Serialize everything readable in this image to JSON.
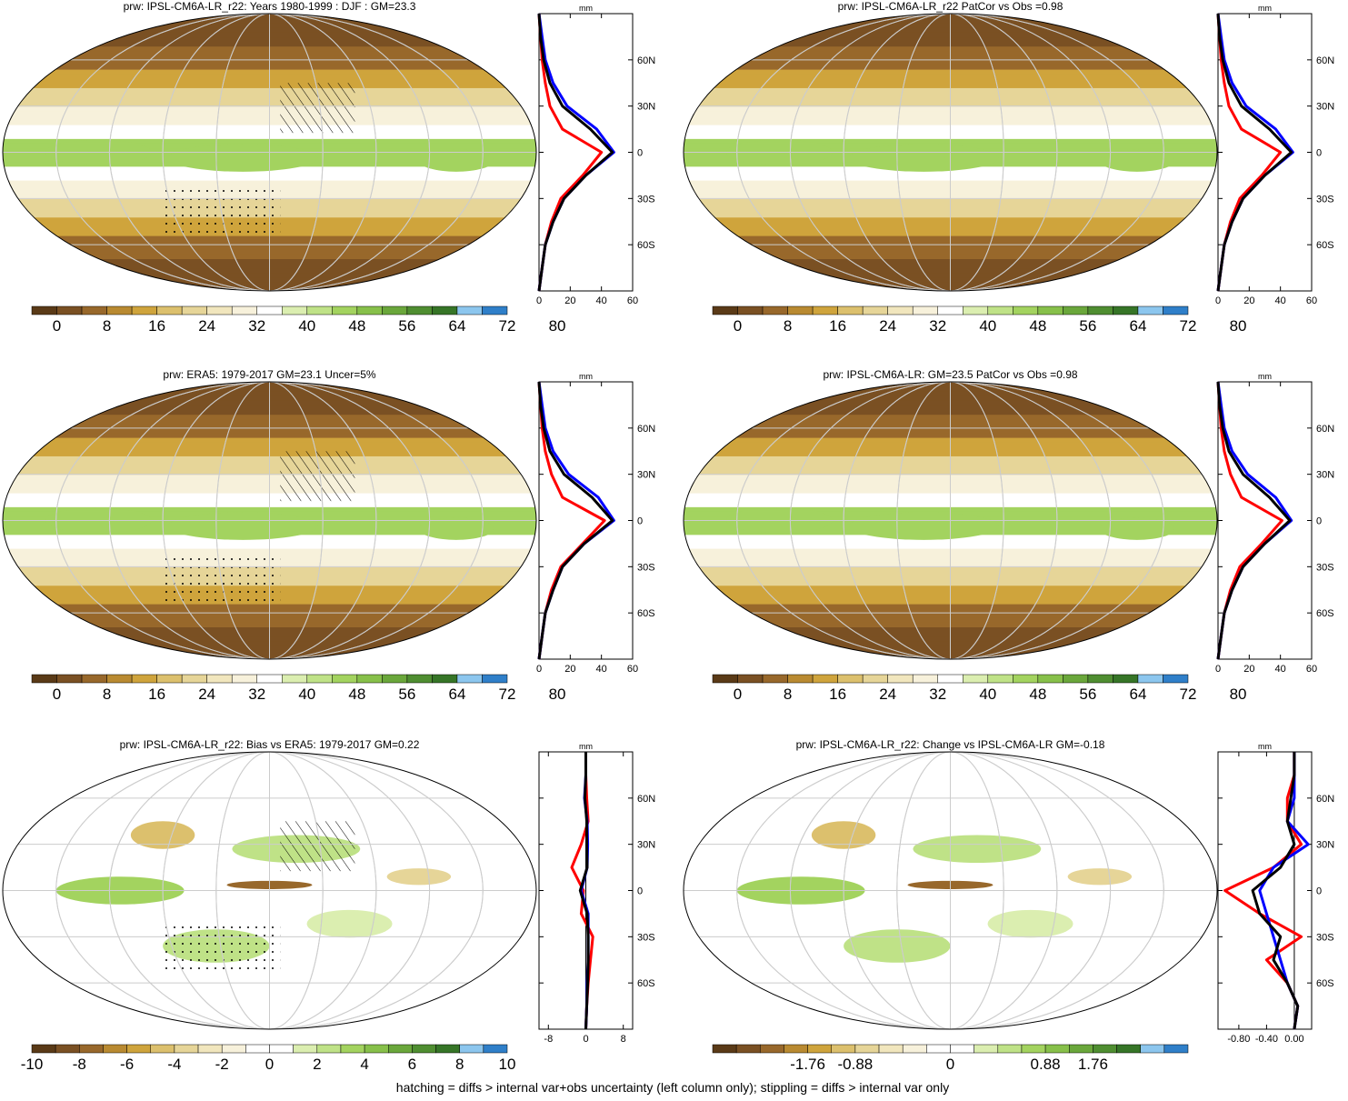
{
  "footer": "hatching = diffs > internal var+obs uncertainty (left column only); stippling = diffs > internal var only",
  "palette": {
    "abs": [
      "#5a3a17",
      "#7a5023",
      "#98682b",
      "#b98a31",
      "#cfa43c",
      "#dcc06d",
      "#e6d598",
      "#f1e6bd",
      "#f7f1db",
      "#ffffff",
      "#dbeeb0",
      "#bfe287",
      "#a3d35f",
      "#87c04a",
      "#6aa73b",
      "#4f8e31",
      "#367527",
      "#8cc6ee",
      "#2f7fc9"
    ],
    "diff": [
      "#5a3a17",
      "#7a5023",
      "#98682b",
      "#b98a31",
      "#cfa43c",
      "#dcc06d",
      "#e6d598",
      "#f1e6bd",
      "#f7f1db",
      "#ffffff",
      "#ffffff",
      "#dbeeb0",
      "#bfe287",
      "#a3d35f",
      "#87c04a",
      "#6aa73b",
      "#4f8e31",
      "#367527",
      "#8cc6ee",
      "#2f7fc9"
    ]
  },
  "line_colors": {
    "series1": "#ff0000",
    "series2": "#0000ff",
    "series3": "#000000"
  },
  "chart_data": [
    {
      "type": "heatmap",
      "title": "prw: IPSL-CM6A-LR_r22: Years 1980-1999 : DJF : GM=23.3",
      "colorbar": {
        "kind": "abs",
        "tick_labels": [
          "0",
          "8",
          "16",
          "24",
          "32",
          "40",
          "48",
          "56",
          "64",
          "72",
          "80"
        ]
      },
      "hatching": true,
      "profile": {
        "x_ticks": [
          "0",
          "20",
          "40",
          "60"
        ],
        "x_range": [
          0,
          60
        ],
        "y_ticks": [
          "60N",
          "30N",
          "0",
          "30S",
          "60S"
        ],
        "y_range": [
          -90,
          90
        ],
        "unit": "mm",
        "lat": [
          -90,
          -75,
          -60,
          -45,
          -30,
          -15,
          0,
          15,
          30,
          45,
          60,
          75,
          90
        ],
        "series1": [
          0,
          2,
          4,
          8,
          14,
          28,
          40,
          15,
          7,
          4,
          2,
          1,
          0
        ],
        "series2": [
          0,
          2,
          4,
          9,
          16,
          30,
          48,
          37,
          18,
          9,
          4,
          2,
          0
        ],
        "series3": [
          0,
          2,
          4,
          9,
          16,
          30,
          47,
          33,
          15,
          7,
          3,
          1,
          0
        ]
      }
    },
    {
      "type": "heatmap",
      "title": "prw: IPSL-CM6A-LR_r22 PatCor vs Obs =0.98",
      "colorbar": {
        "kind": "abs",
        "tick_labels": [
          "0",
          "8",
          "16",
          "24",
          "32",
          "40",
          "48",
          "56",
          "64",
          "72",
          "80"
        ]
      },
      "hatching": false,
      "profile": {
        "x_ticks": [
          "0",
          "20",
          "40",
          "60"
        ],
        "x_range": [
          0,
          60
        ],
        "y_ticks": [
          "60N",
          "30N",
          "0",
          "30S",
          "60S"
        ],
        "y_range": [
          -90,
          90
        ],
        "unit": "mm",
        "lat": [
          -90,
          -75,
          -60,
          -45,
          -30,
          -15,
          0,
          15,
          30,
          45,
          60,
          75,
          90
        ],
        "series1": [
          0,
          2,
          4,
          8,
          14,
          28,
          40,
          15,
          7,
          4,
          2,
          1,
          0
        ],
        "series2": [
          0,
          2,
          4,
          9,
          16,
          30,
          48,
          37,
          18,
          9,
          4,
          2,
          0
        ],
        "series3": [
          0,
          2,
          4,
          9,
          16,
          30,
          47,
          33,
          15,
          7,
          3,
          1,
          0
        ]
      }
    },
    {
      "type": "heatmap",
      "title": "prw: ERA5: 1979-2017 GM=23.1 Uncer=5%",
      "colorbar": {
        "kind": "abs",
        "tick_labels": [
          "0",
          "8",
          "16",
          "24",
          "32",
          "40",
          "48",
          "56",
          "64",
          "72",
          "80"
        ]
      },
      "hatching": true,
      "profile": {
        "x_ticks": [
          "0",
          "20",
          "40",
          "60"
        ],
        "x_range": [
          0,
          60
        ],
        "y_ticks": [
          "60N",
          "30N",
          "0",
          "30S",
          "60S"
        ],
        "y_range": [
          -90,
          90
        ],
        "unit": "mm",
        "lat": [
          -90,
          -75,
          -60,
          -45,
          -30,
          -15,
          0,
          15,
          30,
          45,
          60,
          75,
          90
        ],
        "series1": [
          0,
          2,
          4,
          8,
          14,
          28,
          42,
          15,
          8,
          4,
          2,
          1,
          0
        ],
        "series2": [
          0,
          2,
          4,
          9,
          15,
          29,
          48,
          38,
          19,
          9,
          4,
          2,
          0
        ],
        "series3": [
          0,
          2,
          4,
          9,
          15,
          29,
          47,
          34,
          16,
          7,
          3,
          1,
          0
        ]
      }
    },
    {
      "type": "heatmap",
      "title": "prw: IPSL-CM6A-LR: GM=23.5 PatCor vs Obs =0.98",
      "colorbar": {
        "kind": "abs",
        "tick_labels": [
          "0",
          "8",
          "16",
          "24",
          "32",
          "40",
          "48",
          "56",
          "64",
          "72",
          "80"
        ]
      },
      "hatching": false,
      "profile": {
        "x_ticks": [
          "0",
          "20",
          "40",
          "60"
        ],
        "x_range": [
          0,
          60
        ],
        "y_ticks": [
          "60N",
          "30N",
          "0",
          "30S",
          "60S"
        ],
        "y_range": [
          -90,
          90
        ],
        "unit": "mm",
        "lat": [
          -90,
          -75,
          -60,
          -45,
          -30,
          -15,
          0,
          15,
          30,
          45,
          60,
          75,
          90
        ],
        "series1": [
          0,
          2,
          4,
          8,
          14,
          28,
          41,
          15,
          8,
          4,
          2,
          1,
          0
        ],
        "series2": [
          0,
          2,
          4,
          9,
          16,
          30,
          47,
          37,
          19,
          9,
          4,
          2,
          0
        ],
        "series3": [
          0,
          2,
          4,
          9,
          16,
          30,
          46,
          33,
          16,
          7,
          3,
          1,
          0
        ]
      }
    },
    {
      "type": "heatmap",
      "title": "prw: IPSL-CM6A-LR_r22: Bias vs ERA5: 1979-2017 GM=0.22",
      "colorbar": {
        "kind": "diff",
        "tick_labels": [
          "-10",
          "-8",
          "-6",
          "-4",
          "-2",
          "0",
          "2",
          "4",
          "6",
          "8",
          "10"
        ]
      },
      "hatching": true,
      "profile": {
        "x_ticks": [
          "-8",
          "0",
          "8"
        ],
        "x_range": [
          -10,
          10
        ],
        "y_ticks": [
          "60N",
          "30N",
          "0",
          "30S",
          "60S"
        ],
        "y_range": [
          -90,
          90
        ],
        "unit": "mm",
        "lat": [
          -90,
          -75,
          -60,
          -45,
          -30,
          -15,
          0,
          15,
          30,
          45,
          60,
          75,
          90
        ],
        "series1": [
          0,
          0.2,
          0.5,
          1,
          1.5,
          -1,
          -0.5,
          -3,
          -1,
          0.5,
          0.2,
          0,
          0
        ],
        "series2": [
          0,
          0.2,
          0.3,
          0.5,
          0.5,
          0.5,
          -1,
          0.3,
          0.4,
          0.3,
          -0.3,
          0,
          0
        ],
        "series3": [
          0,
          0.2,
          0.4,
          0.5,
          0.5,
          0.3,
          -1.2,
          0.3,
          0.2,
          0.2,
          -0.2,
          0,
          0
        ]
      }
    },
    {
      "type": "heatmap",
      "title": "prw: IPSL-CM6A-LR_r22: Change vs IPSL-CM6A-LR GM=-0.18",
      "colorbar": {
        "kind": "diff",
        "tick_labels": [
          "-1.76",
          "-0.88",
          "0",
          "0.88",
          "1.76"
        ]
      },
      "hatching": false,
      "profile": {
        "x_ticks": [
          "-0.80",
          "-0.40",
          "0.00"
        ],
        "x_range": [
          -1.1,
          0.25
        ],
        "y_ticks": [
          "60N",
          "30N",
          "0",
          "30S",
          "60S"
        ],
        "y_range": [
          -90,
          90
        ],
        "unit": "mm",
        "lat": [
          -90,
          -75,
          -60,
          -45,
          -30,
          -15,
          0,
          15,
          30,
          45,
          60,
          75,
          90
        ],
        "series1": [
          0,
          0.05,
          -0.1,
          -0.4,
          0.1,
          -0.5,
          -1.0,
          -0.3,
          0.1,
          -0.1,
          -0.1,
          0,
          0
        ],
        "series2": [
          0,
          0.05,
          -0.1,
          -0.2,
          -0.3,
          -0.4,
          -0.5,
          -0.3,
          0.2,
          -0.1,
          0.0,
          0,
          0
        ],
        "series3": [
          0,
          0.05,
          -0.1,
          -0.3,
          -0.2,
          -0.5,
          -0.6,
          -0.2,
          0.0,
          -0.1,
          -0.05,
          0,
          0
        ]
      }
    }
  ]
}
